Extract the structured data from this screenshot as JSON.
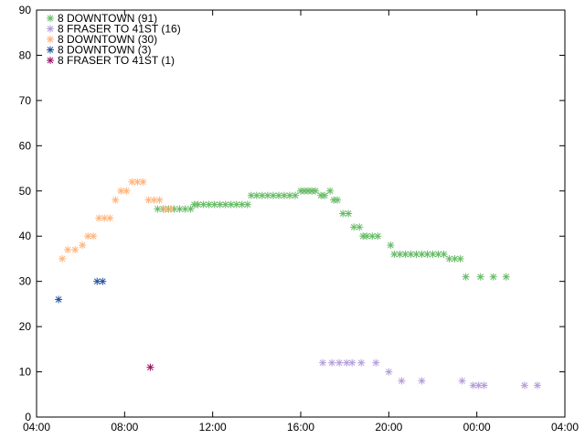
{
  "chart_data": {
    "type": "scatter",
    "title": "",
    "xlabel": "",
    "ylabel": "",
    "x_format": "HH:MM",
    "xlim": [
      "04:00",
      "28:00"
    ],
    "ylim": [
      0,
      90
    ],
    "x_ticks": [
      "04:00",
      "08:00",
      "12:00",
      "16:00",
      "20:00",
      "00:00",
      "04:00"
    ],
    "y_ticks": [
      "0",
      "10",
      "20",
      "30",
      "40",
      "50",
      "60",
      "70",
      "80",
      "90"
    ],
    "grid": false,
    "legend_position": "top-left",
    "marker": "asterisk",
    "series": [
      {
        "name": "8 DOWNTOWN (91)",
        "color": "#66bb66",
        "points": [
          [
            "09:30",
            46
          ],
          [
            "09:45",
            46
          ],
          [
            "10:00",
            46
          ],
          [
            "10:15",
            46
          ],
          [
            "10:30",
            46
          ],
          [
            "10:45",
            46
          ],
          [
            "11:00",
            46
          ],
          [
            "11:10",
            47
          ],
          [
            "11:20",
            47
          ],
          [
            "11:35",
            47
          ],
          [
            "11:50",
            47
          ],
          [
            "12:05",
            47
          ],
          [
            "12:20",
            47
          ],
          [
            "12:35",
            47
          ],
          [
            "12:50",
            47
          ],
          [
            "13:05",
            47
          ],
          [
            "13:20",
            47
          ],
          [
            "13:35",
            47
          ],
          [
            "13:45",
            49
          ],
          [
            "14:00",
            49
          ],
          [
            "14:15",
            49
          ],
          [
            "14:30",
            49
          ],
          [
            "14:45",
            49
          ],
          [
            "15:00",
            49
          ],
          [
            "15:15",
            49
          ],
          [
            "15:30",
            49
          ],
          [
            "15:45",
            49
          ],
          [
            "16:00",
            50
          ],
          [
            "16:10",
            50
          ],
          [
            "16:20",
            50
          ],
          [
            "16:30",
            50
          ],
          [
            "16:40",
            50
          ],
          [
            "16:55",
            49
          ],
          [
            "17:05",
            49
          ],
          [
            "17:20",
            50
          ],
          [
            "17:30",
            48
          ],
          [
            "17:40",
            48
          ],
          [
            "17:55",
            45
          ],
          [
            "18:10",
            45
          ],
          [
            "18:25",
            42
          ],
          [
            "18:40",
            42
          ],
          [
            "18:50",
            40
          ],
          [
            "19:00",
            40
          ],
          [
            "19:15",
            40
          ],
          [
            "19:30",
            40
          ],
          [
            "20:05",
            38
          ],
          [
            "20:15",
            36
          ],
          [
            "20:30",
            36
          ],
          [
            "20:45",
            36
          ],
          [
            "21:00",
            36
          ],
          [
            "21:15",
            36
          ],
          [
            "21:30",
            36
          ],
          [
            "21:45",
            36
          ],
          [
            "22:00",
            36
          ],
          [
            "22:15",
            36
          ],
          [
            "22:30",
            36
          ],
          [
            "22:45",
            35
          ],
          [
            "23:00",
            35
          ],
          [
            "23:15",
            35
          ],
          [
            "23:30",
            31
          ],
          [
            "24:10",
            31
          ],
          [
            "24:45",
            31
          ],
          [
            "25:20",
            31
          ]
        ]
      },
      {
        "name": "8 FRASER TO 41ST (16)",
        "color": "#b39ddb",
        "points": [
          [
            "17:00",
            12
          ],
          [
            "17:25",
            12
          ],
          [
            "17:45",
            12
          ],
          [
            "18:05",
            12
          ],
          [
            "18:20",
            12
          ],
          [
            "18:45",
            12
          ],
          [
            "19:25",
            12
          ],
          [
            "20:00",
            10
          ],
          [
            "20:35",
            8
          ],
          [
            "21:30",
            8
          ],
          [
            "23:20",
            8
          ],
          [
            "23:50",
            7
          ],
          [
            "24:05",
            7
          ],
          [
            "24:20",
            7
          ],
          [
            "26:10",
            7
          ],
          [
            "26:45",
            7
          ]
        ]
      },
      {
        "name": "8 DOWNTOWN (30)",
        "color": "#ffb37a",
        "points": [
          [
            "05:10",
            35
          ],
          [
            "05:25",
            37
          ],
          [
            "05:45",
            37
          ],
          [
            "06:05",
            38
          ],
          [
            "06:20",
            40
          ],
          [
            "06:35",
            40
          ],
          [
            "06:50",
            44
          ],
          [
            "07:05",
            44
          ],
          [
            "07:20",
            44
          ],
          [
            "07:35",
            48
          ],
          [
            "07:50",
            50
          ],
          [
            "08:05",
            50
          ],
          [
            "08:20",
            52
          ],
          [
            "08:35",
            52
          ],
          [
            "08:50",
            52
          ],
          [
            "09:05",
            48
          ],
          [
            "09:20",
            48
          ],
          [
            "09:35",
            48
          ],
          [
            "09:50",
            46
          ],
          [
            "10:05",
            46
          ]
        ]
      },
      {
        "name": "8 DOWNTOWN (3)",
        "color": "#1f4e9e",
        "points": [
          [
            "05:00",
            26
          ],
          [
            "06:45",
            30
          ],
          [
            "07:00",
            30
          ]
        ]
      },
      {
        "name": "8 FRASER TO 41ST (1)",
        "color": "#a0106b",
        "points": [
          [
            "09:10",
            11
          ]
        ]
      }
    ]
  }
}
